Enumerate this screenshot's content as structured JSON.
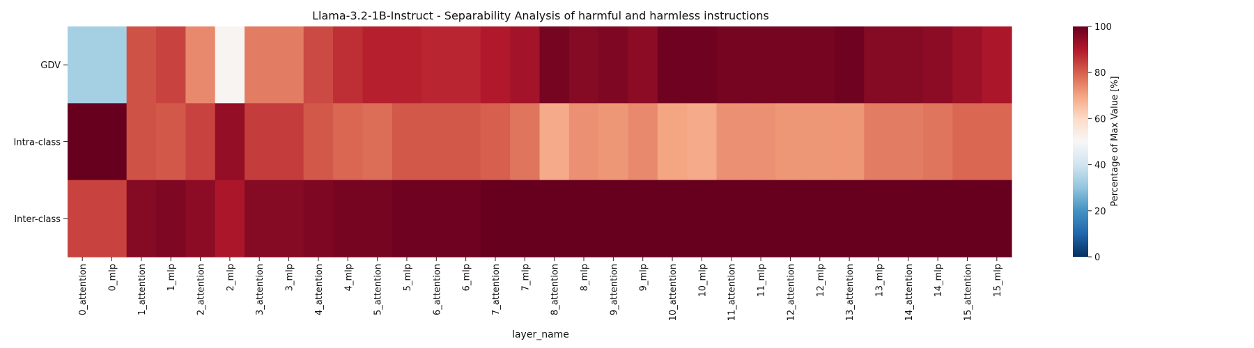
{
  "chart_data": {
    "type": "heatmap",
    "title": "Llama-3.2-1B-Instruct - Separability Analysis of harmful and harmless instructions",
    "xlabel": "layer_name",
    "ylabel": "",
    "rows": [
      "GDV",
      "Intra-class",
      "Inter-class"
    ],
    "columns": [
      "0_attention",
      "0_mlp",
      "1_attention",
      "1_mlp",
      "2_attention",
      "2_mlp",
      "3_attention",
      "3_mlp",
      "4_attention",
      "4_mlp",
      "5_attention",
      "5_mlp",
      "6_attention",
      "6_mlp",
      "7_attention",
      "7_mlp",
      "8_attention",
      "8_mlp",
      "9_attention",
      "9_mlp",
      "10_attention",
      "10_mlp",
      "11_attention",
      "11_mlp",
      "12_attention",
      "12_mlp",
      "13_attention",
      "13_mlp",
      "14_attention",
      "14_mlp",
      "15_attention",
      "15_mlp"
    ],
    "values": [
      [
        33,
        33,
        82,
        84,
        74,
        51,
        76,
        76,
        83,
        87,
        89,
        89,
        88,
        88,
        90,
        92,
        98,
        96,
        97,
        95,
        99,
        99,
        98,
        98,
        98,
        98,
        99,
        96,
        96,
        95,
        93,
        91
      ],
      [
        100,
        100,
        82,
        81,
        84,
        94,
        85,
        85,
        81,
        79,
        78,
        81,
        81,
        81,
        80,
        77,
        69,
        73,
        72,
        74,
        70,
        69,
        73,
        73,
        72,
        72,
        72,
        76,
        76,
        77,
        79,
        79
      ],
      [
        84,
        84,
        96,
        97,
        95,
        91,
        96,
        96,
        97,
        98,
        98,
        99,
        99,
        99,
        100,
        100,
        100,
        100,
        100,
        100,
        100,
        100,
        100,
        100,
        100,
        100,
        100,
        100,
        100,
        100,
        100,
        100
      ]
    ],
    "colorbar": {
      "label": "Percentage of Max Value [%]",
      "range": [
        0,
        100
      ],
      "ticks": [
        "0",
        "20",
        "40",
        "60",
        "80",
        "100"
      ],
      "colormap": "RdBu_r"
    }
  }
}
